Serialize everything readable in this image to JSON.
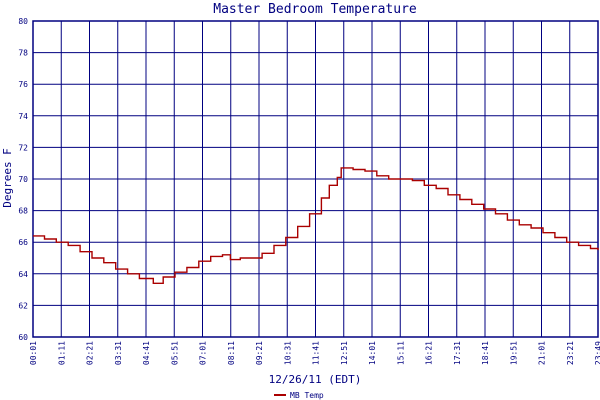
{
  "chart_data": {
    "type": "line",
    "title": "Master Bedroom Temperature",
    "xlabel": "12/26/11 (EDT)",
    "ylabel": "Degrees F",
    "ylim": [
      60,
      80
    ],
    "y_ticks": [
      60,
      62,
      64,
      66,
      68,
      70,
      72,
      74,
      76,
      78,
      80
    ],
    "x_tick_labels": [
      "00:01",
      "01:11",
      "02:21",
      "03:31",
      "04:41",
      "05:51",
      "07:01",
      "08:11",
      "09:21",
      "10:31",
      "11:41",
      "12:51",
      "14:01",
      "15:11",
      "16:21",
      "17:31",
      "18:41",
      "19:51",
      "21:01",
      "23:21",
      "23:49"
    ],
    "grid": true,
    "legend_position": "bottom-left",
    "colors": {
      "background": "#ffffff",
      "grid": "#000080",
      "line": "#aa0000",
      "text": "#000080"
    },
    "series": [
      {
        "name": "MB Temp",
        "points": [
          [
            "00:01",
            66.4
          ],
          [
            "00:30",
            66.2
          ],
          [
            "01:00",
            66.0
          ],
          [
            "01:30",
            65.8
          ],
          [
            "02:00",
            65.4
          ],
          [
            "02:30",
            65.0
          ],
          [
            "03:00",
            64.7
          ],
          [
            "03:30",
            64.3
          ],
          [
            "04:00",
            64.0
          ],
          [
            "04:30",
            63.7
          ],
          [
            "05:05",
            63.4
          ],
          [
            "05:30",
            63.8
          ],
          [
            "06:00",
            64.1
          ],
          [
            "06:30",
            64.4
          ],
          [
            "07:00",
            64.8
          ],
          [
            "07:30",
            65.1
          ],
          [
            "08:00",
            65.2
          ],
          [
            "08:20",
            64.9
          ],
          [
            "08:45",
            65.0
          ],
          [
            "09:10",
            65.0
          ],
          [
            "09:40",
            65.3
          ],
          [
            "10:10",
            65.8
          ],
          [
            "10:40",
            66.3
          ],
          [
            "11:10",
            67.0
          ],
          [
            "11:40",
            67.8
          ],
          [
            "12:10",
            68.8
          ],
          [
            "12:30",
            69.6
          ],
          [
            "12:50",
            70.1
          ],
          [
            "13:00",
            70.7
          ],
          [
            "13:30",
            70.6
          ],
          [
            "14:00",
            70.5
          ],
          [
            "14:30",
            70.2
          ],
          [
            "15:00",
            70.0
          ],
          [
            "15:30",
            70.0
          ],
          [
            "16:00",
            69.9
          ],
          [
            "16:30",
            69.6
          ],
          [
            "17:00",
            69.4
          ],
          [
            "17:30",
            69.0
          ],
          [
            "18:00",
            68.7
          ],
          [
            "18:30",
            68.4
          ],
          [
            "19:00",
            68.1
          ],
          [
            "19:30",
            67.8
          ],
          [
            "20:00",
            67.4
          ],
          [
            "20:30",
            67.1
          ],
          [
            "21:00",
            66.9
          ],
          [
            "21:30",
            66.6
          ],
          [
            "22:00",
            66.3
          ],
          [
            "22:30",
            66.0
          ],
          [
            "23:00",
            65.8
          ],
          [
            "23:30",
            65.6
          ],
          [
            "23:49",
            65.5
          ]
        ]
      }
    ]
  }
}
